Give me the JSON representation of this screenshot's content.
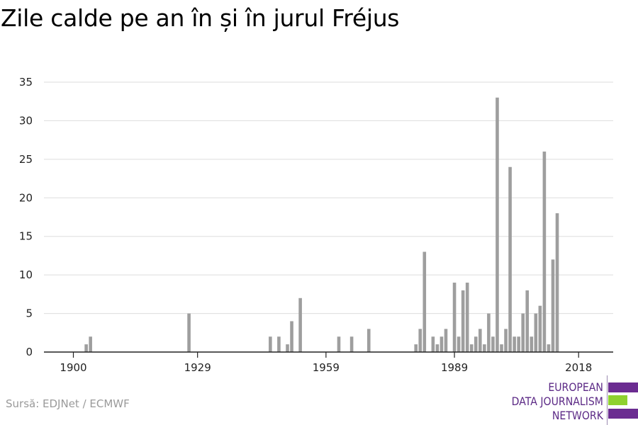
{
  "title": "Zile calde pe an în și în jurul Fréjus",
  "source": "Sursă: EDJNet / ECMWF",
  "logo": {
    "lines": [
      "EUROPEAN",
      "DATA JOURNALISM",
      "NETWORK"
    ],
    "colors": {
      "purple": "#6b2c91",
      "green": "#8fd12f"
    }
  },
  "chart_data": {
    "type": "bar",
    "xlabel": "",
    "ylabel": "",
    "xlim": [
      1894,
      2020
    ],
    "ylim": [
      0,
      35
    ],
    "y_ticks": [
      0,
      5,
      10,
      15,
      20,
      25,
      30,
      35
    ],
    "x_ticks": [
      1900,
      1929,
      1959,
      1989,
      2018
    ],
    "grid": true,
    "bar_color": "#9e9e9e",
    "x": [
      1903,
      1904,
      1927,
      1946,
      1948,
      1950,
      1951,
      1953,
      1962,
      1965,
      1969,
      1980,
      1981,
      1982,
      1984,
      1985,
      1986,
      1987,
      1989,
      1990,
      1991,
      1992,
      1993,
      1994,
      1995,
      1996,
      1997,
      1998,
      1999,
      2000,
      2001,
      2002,
      2003,
      2004,
      2005,
      2006,
      2007,
      2008,
      2009,
      2010,
      2011,
      2012,
      2013,
      2014,
      2015
    ],
    "values": [
      1,
      2,
      5,
      2,
      2,
      1,
      4,
      7,
      2,
      2,
      3,
      1,
      3,
      13,
      2,
      1,
      2,
      3,
      9,
      2,
      8,
      9,
      1,
      2,
      3,
      1,
      5,
      2,
      33,
      1,
      3,
      24,
      2,
      2,
      5,
      8,
      2,
      5,
      6,
      26,
      1,
      12,
      18,
      0,
      0
    ]
  }
}
